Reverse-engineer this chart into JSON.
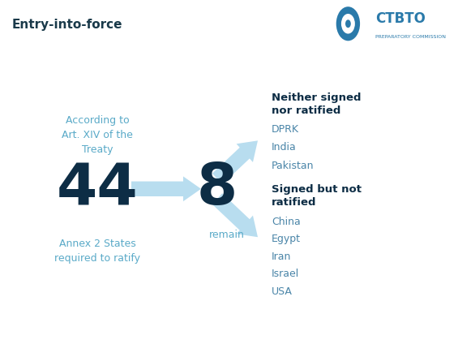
{
  "title": "Entry-into-force",
  "header_bg": "#d6e6e1",
  "body_bg": "#ffffff",
  "footer_bg": "#d6e6e1",
  "header_text_color": "#1a3a4a",
  "title_fontsize": 11,
  "num_44": "44",
  "num_8": "8",
  "num_color": "#0d2d45",
  "num_fontsize": 52,
  "label_above_44": "According to\nArt. XIV of the\nTreaty",
  "label_below_44": "Annex 2 States\nrequired to ratify",
  "label_below_8": "remain",
  "small_label_color": "#5aaac8",
  "small_label_fontsize": 9,
  "arrow_color": "#b8ddef",
  "section1_title": "Neither signed\nnor ratified",
  "section1_items": [
    "DPRK",
    "India",
    "Pakistan"
  ],
  "section2_title": "Signed but not\nratified",
  "section2_items": [
    "China",
    "Egypt",
    "Iran",
    "Israel",
    "USA"
  ],
  "section_title_color": "#0d2d45",
  "section_title_fontsize": 9.5,
  "section_item_color": "#4a85a8",
  "section_item_fontsize": 9,
  "ctbto_text": "CTBTO",
  "ctbto_sub": "PREPARATORY COMMISSION",
  "ctbto_color": "#2a7aaa"
}
